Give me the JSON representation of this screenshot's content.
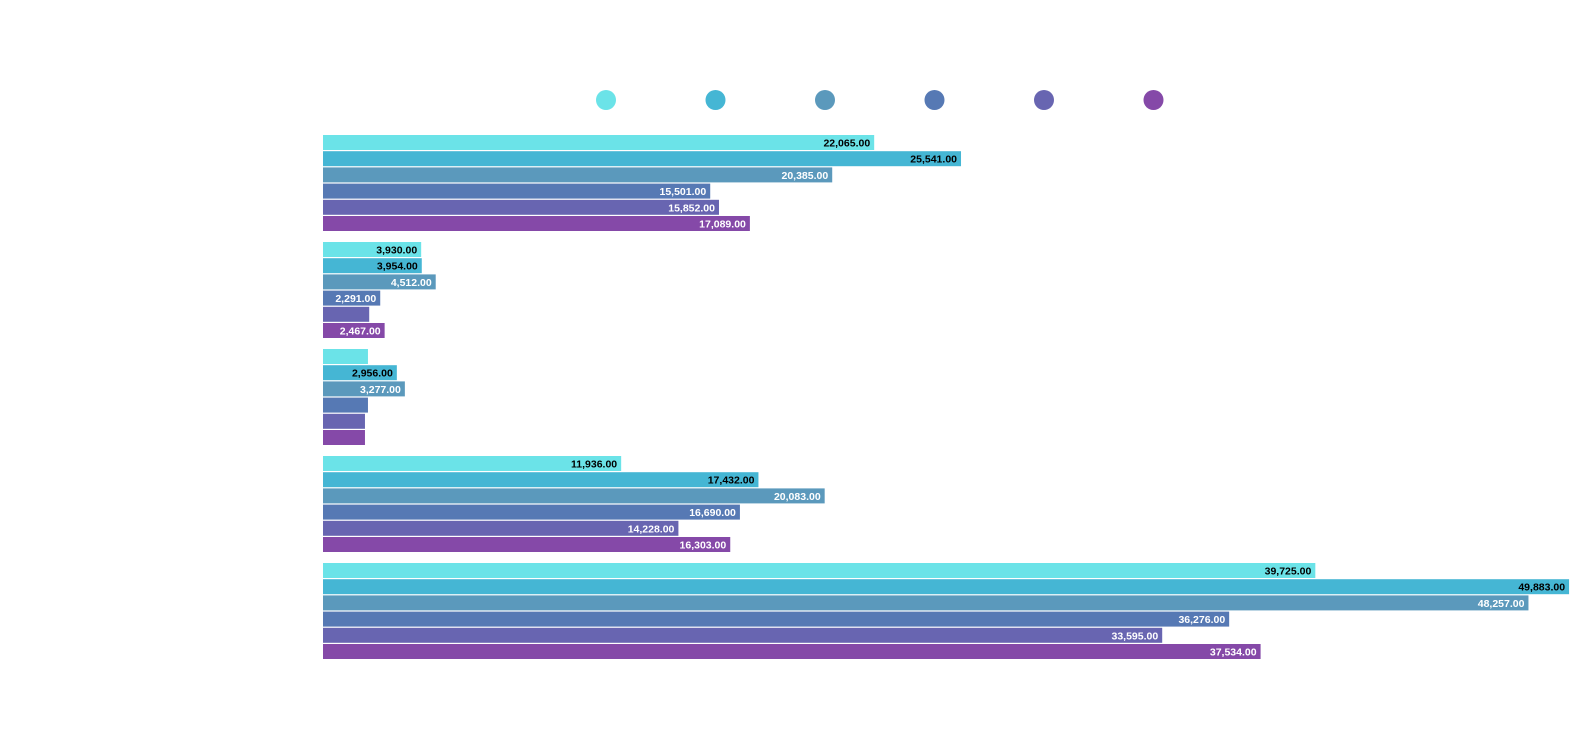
{
  "chart_data": {
    "type": "bar",
    "orientation": "horizontal",
    "grouped": true,
    "legend_position": "top",
    "xlim": [
      0,
      50000
    ],
    "categories": [
      "",
      "",
      "",
      "",
      ""
    ],
    "series": [
      {
        "color": "#6be3e8",
        "label_color": "#000000",
        "values": [
          22065,
          3930,
          1800,
          11936,
          39725
        ],
        "labels": [
          "22,065.00",
          "3,930.00",
          "",
          "11,936.00",
          "39,725.00"
        ]
      },
      {
        "color": "#45b6d4",
        "label_color": "#000000",
        "values": [
          25541,
          3954,
          2956,
          17432,
          49883
        ],
        "labels": [
          "25,541.00",
          "3,954.00",
          "2,956.00",
          "17,432.00",
          "49,883.00"
        ]
      },
      {
        "color": "#5b99bc",
        "label_color": "#ffffff",
        "values": [
          20385,
          4512,
          3277,
          20083,
          48257
        ],
        "labels": [
          "20,385.00",
          "4,512.00",
          "3,277.00",
          "20,083.00",
          "48,257.00"
        ]
      },
      {
        "color": "#5679b4",
        "label_color": "#ffffff",
        "values": [
          15501,
          2291,
          1800,
          16690,
          36276
        ],
        "labels": [
          "15,501.00",
          "2,291.00",
          "",
          "16,690.00",
          "36,276.00"
        ]
      },
      {
        "color": "#6865b1",
        "label_color": "#ffffff",
        "values": [
          15852,
          1850,
          1680,
          14228,
          33595
        ],
        "labels": [
          "15,852.00",
          "",
          "",
          "14,228.00",
          "33,595.00"
        ]
      },
      {
        "color": "#8549a8",
        "label_color": "#ffffff",
        "values": [
          17089,
          2467,
          1680,
          16303,
          37534
        ],
        "labels": [
          "17,089.00",
          "2,467.00",
          "",
          "16,303.00",
          "37,534.00"
        ]
      }
    ]
  }
}
